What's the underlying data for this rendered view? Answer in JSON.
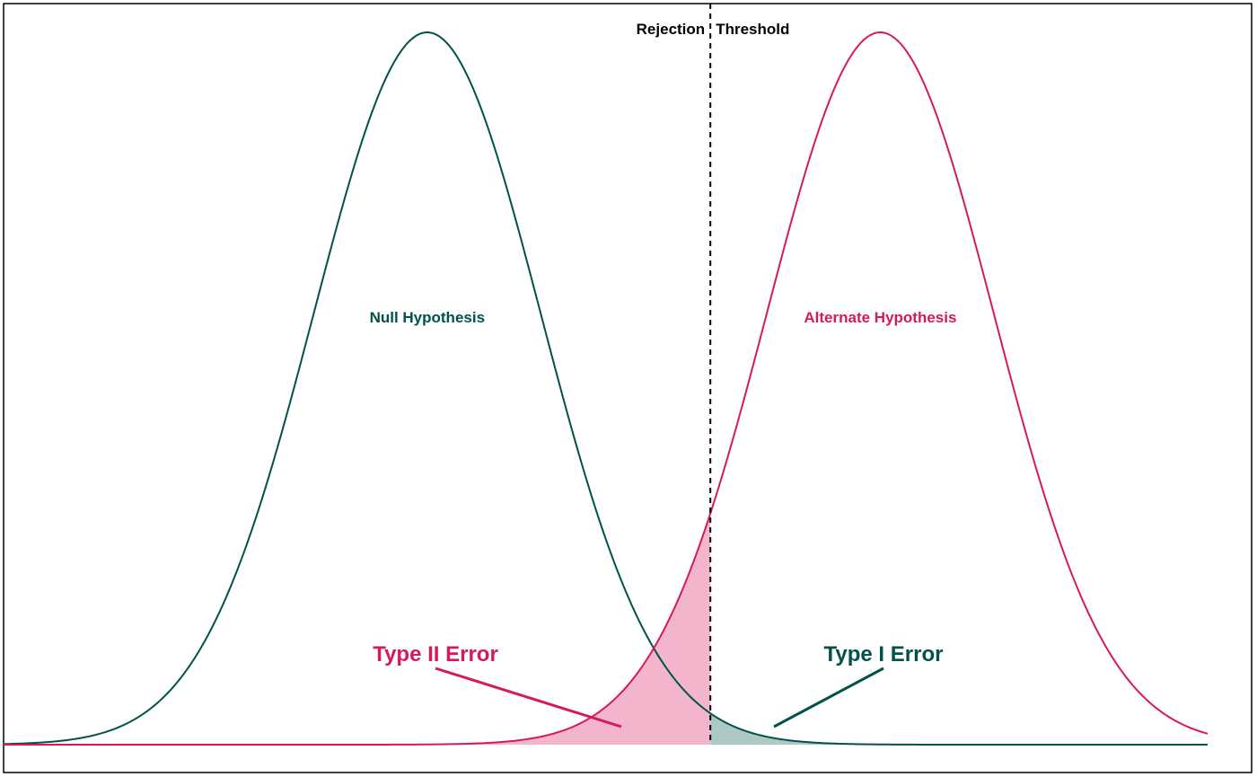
{
  "chart_data": {
    "type": "line",
    "title": "",
    "xlabel": "",
    "ylabel": "",
    "grid": false,
    "xlim": [
      -3.74,
      6.89
    ],
    "ylim": [
      0,
      0.4
    ],
    "threshold": {
      "x": 2.5,
      "label_left": "Rejection",
      "label_right": "Threshold"
    },
    "series": [
      {
        "name": "Null Hypothesis",
        "distribution": "normal",
        "mean": 0,
        "sd": 1,
        "color": "#00524a"
      },
      {
        "name": "Alternate Hypothesis",
        "distribution": "normal",
        "mean": 4,
        "sd": 1,
        "color": "#d6195f"
      }
    ],
    "regions": [
      {
        "name": "Type II Error",
        "from": "xlim_min",
        "to": "threshold",
        "under": "Alternate Hypothesis",
        "fill": "#f2b5cb",
        "color": "#d6195f"
      },
      {
        "name": "Type I Error",
        "from": "threshold",
        "to": "xlim_max",
        "under": "Null Hypothesis",
        "fill": "#aec9c5",
        "color": "#00524a"
      }
    ]
  }
}
